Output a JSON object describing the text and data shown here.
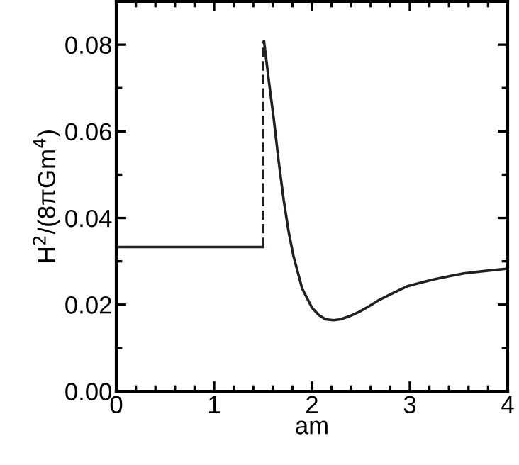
{
  "chart_data": {
    "type": "line",
    "xlabel": "am",
    "ylabel": "H$^{2}$/(8πGm$^{4}$)",
    "xlim": [
      0,
      4
    ],
    "ylim": [
      0,
      0.09
    ],
    "xticks": [
      0,
      1,
      2,
      3,
      4
    ],
    "yticks": [
      {
        "value": 0,
        "label": "0.00"
      },
      {
        "value": 0.02,
        "label": "0.02"
      },
      {
        "value": 0.04,
        "label": "0.04"
      },
      {
        "value": 0.06,
        "label": "0.06"
      },
      {
        "value": 0.08,
        "label": "0.08"
      }
    ],
    "grid": false,
    "marker": "none",
    "series": [
      {
        "color": "#231f20",
        "line_style": "solid",
        "x": [
          0,
          1.5
        ],
        "values": [
          0.0333,
          0.0333
        ]
      },
      {
        "color": "#231f20",
        "line_style": "dashed",
        "x": [
          1.5,
          1.5
        ],
        "values": [
          0.0333,
          0.0808
        ]
      },
      {
        "color": "#231f20",
        "line_style": "solid",
        "x": [
          1.51,
          1.56,
          1.61,
          1.66,
          1.71,
          1.76,
          1.81,
          1.9,
          2.0,
          2.07,
          2.14,
          2.22,
          2.29,
          2.38,
          2.48,
          2.58,
          2.68,
          2.83,
          2.97,
          3.12,
          3.26,
          3.41,
          3.55,
          3.78,
          4.0
        ],
        "values": [
          0.0808,
          0.0715,
          0.0628,
          0.053,
          0.0443,
          0.037,
          0.0313,
          0.0237,
          0.0193,
          0.0176,
          0.0166,
          0.0164,
          0.0166,
          0.0173,
          0.0183,
          0.0196,
          0.021,
          0.0227,
          0.0242,
          0.0251,
          0.0259,
          0.0266,
          0.0272,
          0.0278,
          0.0283
        ]
      }
    ]
  }
}
